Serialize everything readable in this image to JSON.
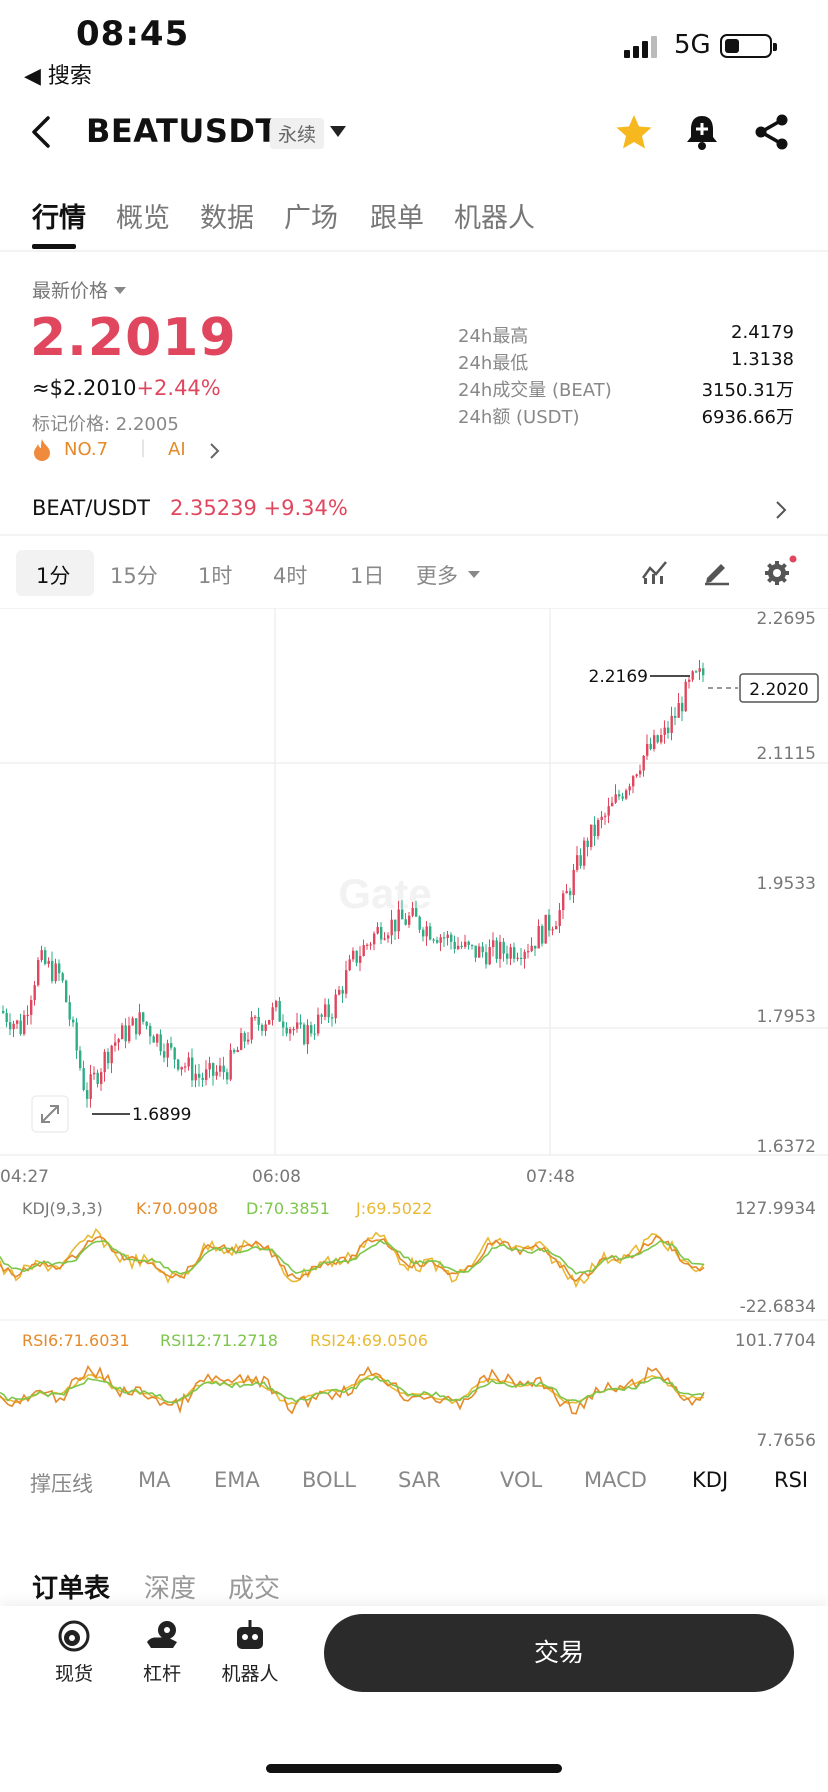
{
  "status_bar": {
    "time": "08:45",
    "back_app": "◀ 搜索",
    "network": "5G"
  },
  "header": {
    "symbol": "BEATUSDT",
    "contract_type": "永续",
    "favorite_color": "#f6b81e"
  },
  "tabs": [
    "行情",
    "概览",
    "数据",
    "广场",
    "跟单",
    "机器人"
  ],
  "price": {
    "latest_label": "最新价格",
    "last": "2.2019",
    "usd": "≈$2.2010",
    "change": "+2.44%",
    "mark_price": "标记价格: 2.2005",
    "rank": "NO.7",
    "ai_tag": "AI",
    "up_color": "#e0475e",
    "down_color": "#2fae86"
  },
  "stats": [
    {
      "label": "24h最高",
      "value": "2.4179"
    },
    {
      "label": "24h最低",
      "value": "1.3138"
    },
    {
      "label": "24h成交量 (BEAT)",
      "value": "3150.31万"
    },
    {
      "label": "24h额 (USDT)",
      "value": "6936.66万"
    }
  ],
  "spot_pair": {
    "name": "BEAT/USDT",
    "price": "2.35239",
    "change": "+9.34%"
  },
  "intervals": [
    "1分",
    "15分",
    "1时",
    "4时",
    "1日",
    "更多"
  ],
  "chart": {
    "y_ticks": [
      "2.2695",
      "2.1115",
      "1.9533",
      "1.7953",
      "1.6372"
    ],
    "x_ticks": [
      "04:27",
      "06:08",
      "07:48"
    ],
    "high_marker": "2.2169",
    "low_marker": "1.6899",
    "current_price": "2.2020",
    "watermark": "Gate"
  },
  "kdj": {
    "title": "KDJ(9,3,3)",
    "k": "K:70.0908",
    "d": "D:70.3851",
    "j": "J:69.5022",
    "max": "127.9934",
    "min": "-22.6834",
    "k_color": "#e58a2a",
    "d_color": "#7cc64a",
    "j_color": "#e9b934"
  },
  "rsi": {
    "r6": "RSI6:71.6031",
    "r12": "RSI12:71.2718",
    "r24": "RSI24:69.0506",
    "max": "101.7704",
    "min": "7.7656"
  },
  "indicators": [
    "撑压线",
    "MA",
    "EMA",
    "BOLL",
    "SAR",
    "VOL",
    "MACD",
    "KDJ",
    "RSI"
  ],
  "book_tabs": [
    "订单表",
    "深度",
    "成交"
  ],
  "bottom_nav": [
    "现货",
    "杠杆",
    "机器人"
  ],
  "trade_button": "交易"
}
